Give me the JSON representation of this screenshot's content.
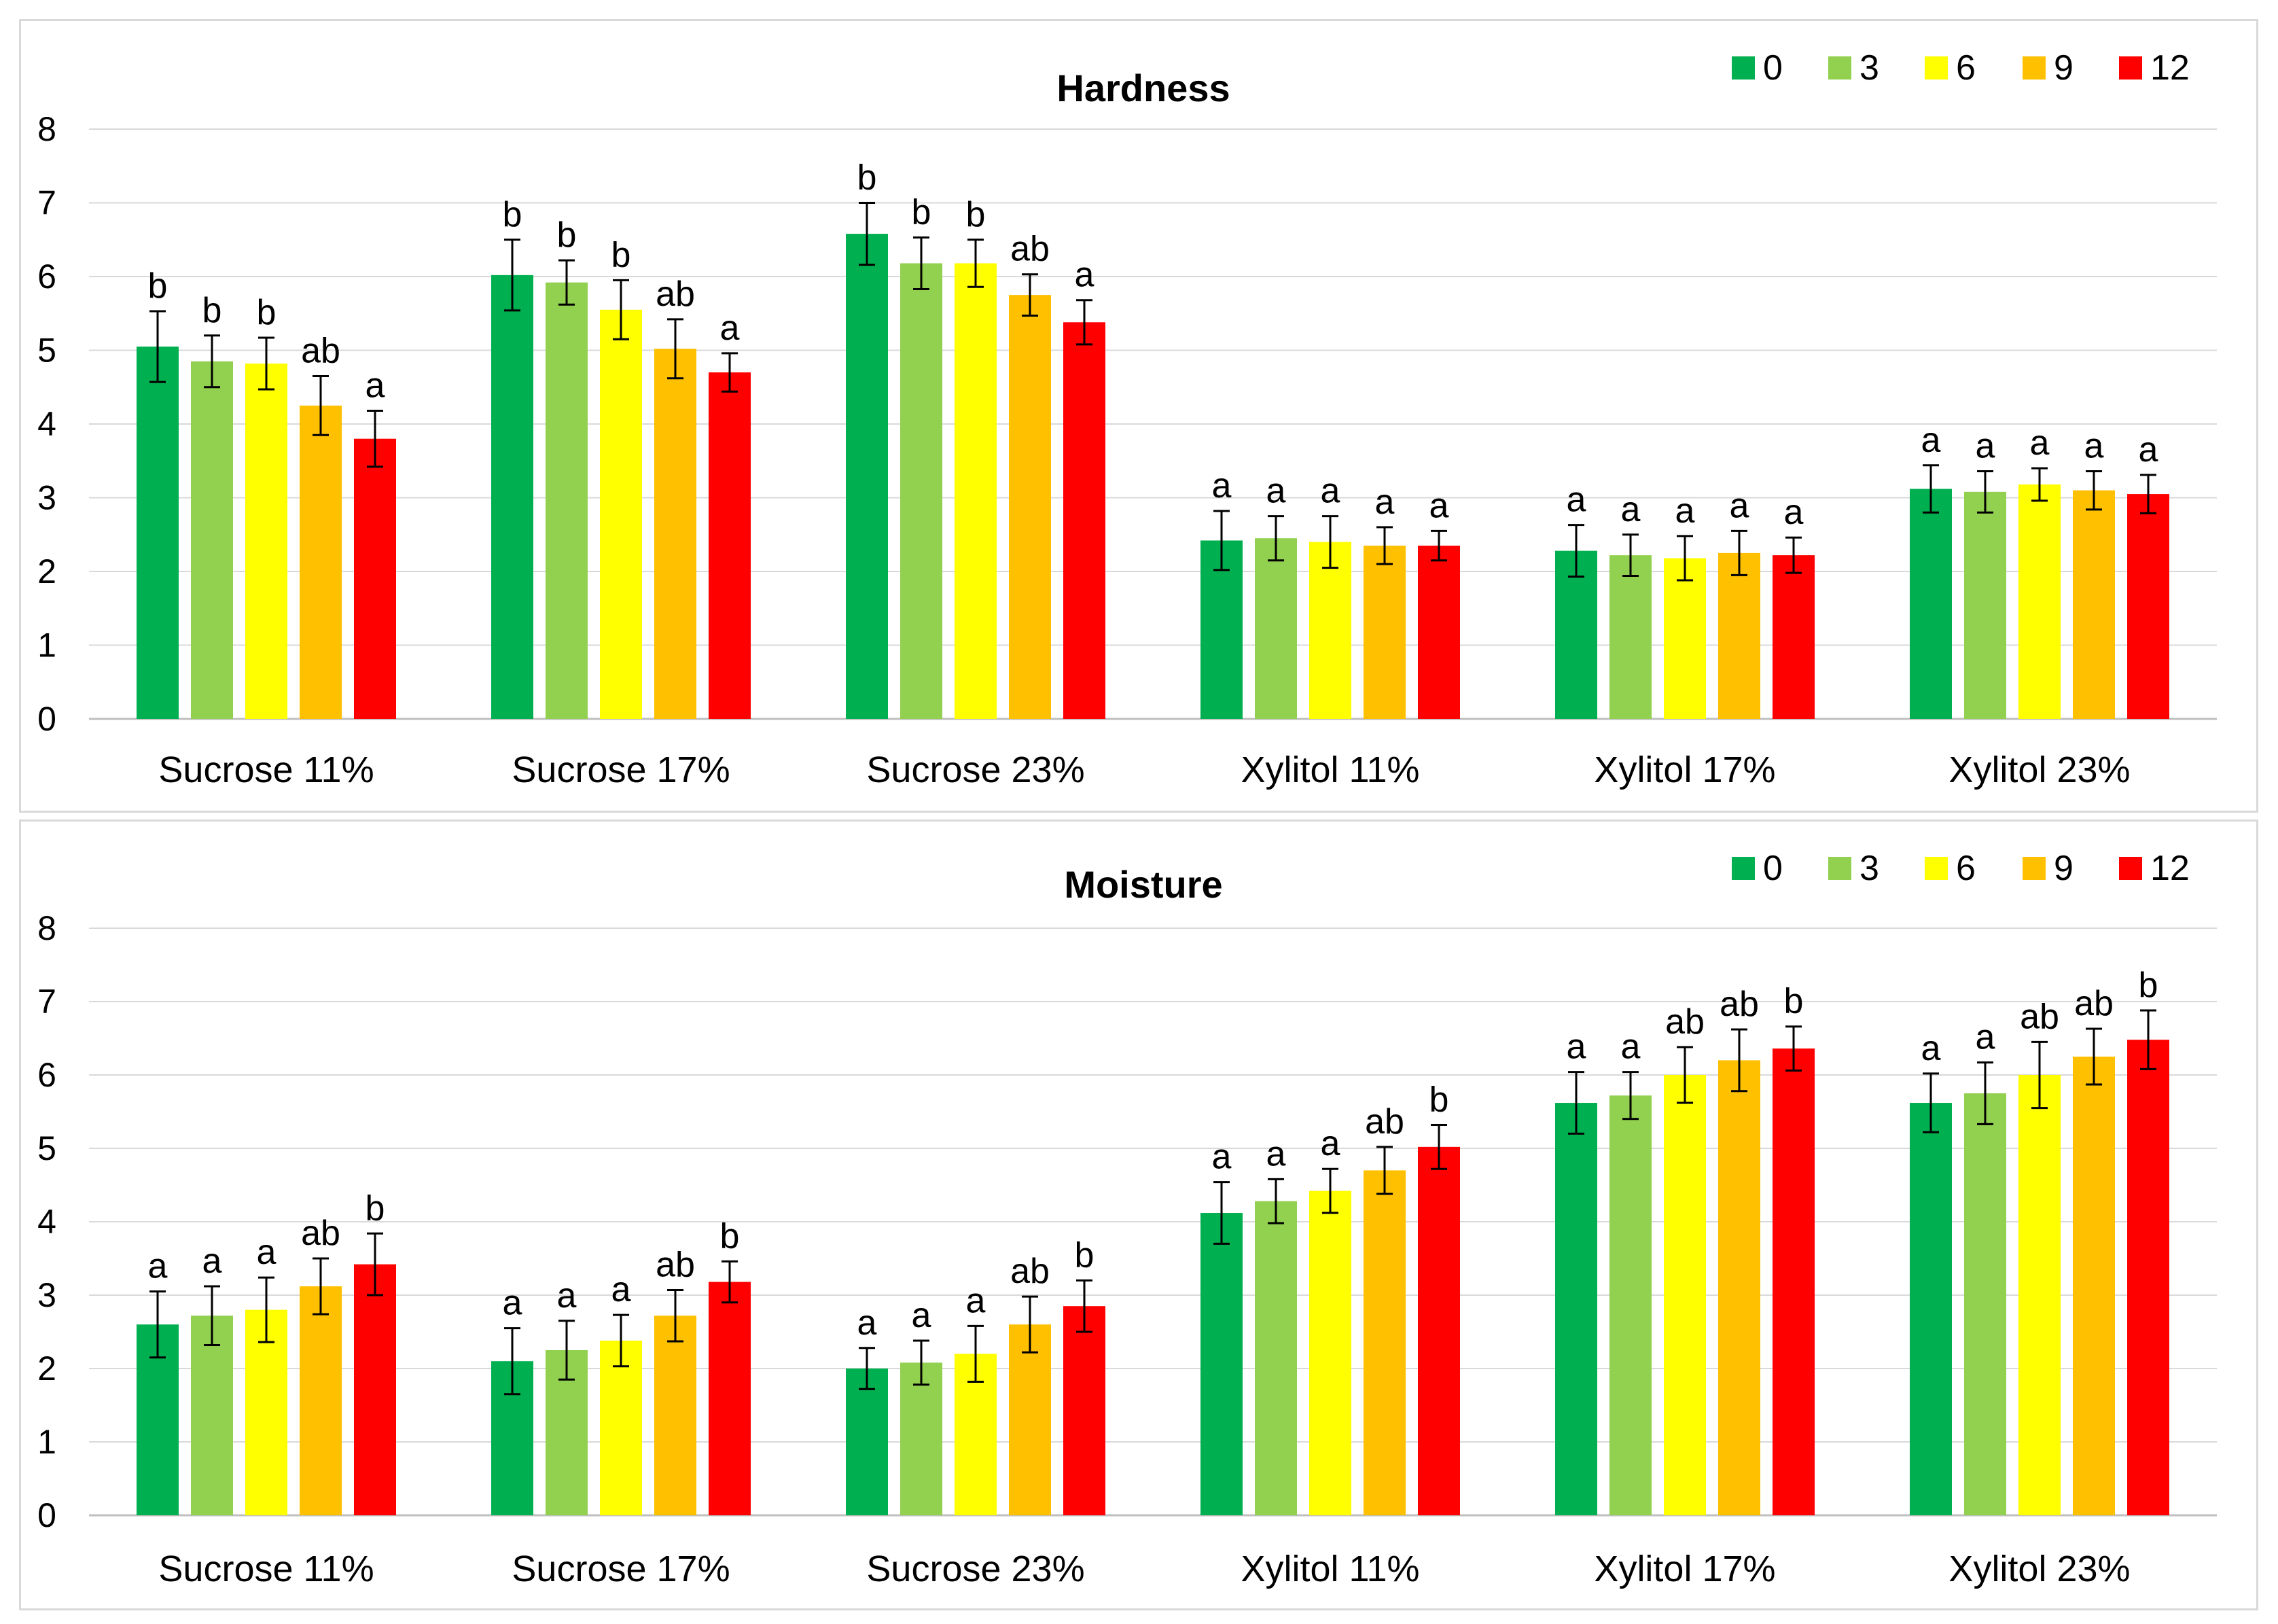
{
  "legend_title": "",
  "colors": [
    "#00B050",
    "#92D050",
    "#FFFF00",
    "#FFC000",
    "#FF0000"
  ],
  "chart_data": [
    {
      "type": "bar",
      "title": "Hardness",
      "xlabel": "",
      "ylabel": "",
      "ylim": [
        0,
        8
      ],
      "yticks": [
        "0",
        "1",
        "2",
        "3",
        "4",
        "5",
        "6",
        "7",
        "8"
      ],
      "categories": [
        "Sucrose 11%",
        "Sucrose 17%",
        "Sucrose 23%",
        "Xylitol 11%",
        "Xylitol 17%",
        "Xylitol 23%"
      ],
      "legend": "top-right",
      "series": [
        {
          "name": "0",
          "values": [
            5.05,
            6.02,
            6.58,
            2.42,
            2.28,
            3.12
          ],
          "errors": [
            0.48,
            0.48,
            0.42,
            0.4,
            0.35,
            0.32
          ],
          "labels": [
            "b",
            "b",
            "b",
            "a",
            "a",
            "a"
          ]
        },
        {
          "name": "3",
          "values": [
            4.85,
            5.92,
            6.18,
            2.45,
            2.22,
            3.08
          ],
          "errors": [
            0.35,
            0.3,
            0.35,
            0.3,
            0.28,
            0.28
          ],
          "labels": [
            "b",
            "b",
            "b",
            "a",
            "a",
            "a"
          ]
        },
        {
          "name": "6",
          "values": [
            4.82,
            5.55,
            6.18,
            2.4,
            2.18,
            3.18
          ],
          "errors": [
            0.35,
            0.4,
            0.32,
            0.35,
            0.3,
            0.22
          ],
          "labels": [
            "b",
            "b",
            "b",
            "a",
            "a",
            "a"
          ]
        },
        {
          "name": "9",
          "values": [
            4.25,
            5.02,
            5.75,
            2.35,
            2.25,
            3.1
          ],
          "errors": [
            0.4,
            0.4,
            0.28,
            0.25,
            0.3,
            0.26
          ],
          "labels": [
            "ab",
            "ab",
            "ab",
            "a",
            "a",
            "a"
          ]
        },
        {
          "name": "12",
          "values": [
            3.8,
            4.7,
            5.38,
            2.35,
            2.22,
            3.05
          ],
          "errors": [
            0.38,
            0.26,
            0.3,
            0.2,
            0.24,
            0.26
          ],
          "labels": [
            "a",
            "a",
            "a",
            "a",
            "a",
            "a"
          ]
        }
      ]
    },
    {
      "type": "bar",
      "title": "Moisture",
      "xlabel": "",
      "ylabel": "",
      "ylim": [
        0,
        8
      ],
      "yticks": [
        "0",
        "1",
        "2",
        "3",
        "4",
        "5",
        "6",
        "7",
        "8"
      ],
      "categories": [
        "Sucrose 11%",
        "Sucrose 17%",
        "Sucrose 23%",
        "Xylitol 11%",
        "Xylitol 17%",
        "Xylitol 23%"
      ],
      "legend": "top-right",
      "series": [
        {
          "name": "0",
          "values": [
            2.6,
            2.1,
            2.0,
            4.12,
            5.62,
            5.62
          ],
          "errors": [
            0.45,
            0.45,
            0.28,
            0.42,
            0.42,
            0.4
          ],
          "labels": [
            "a",
            "a",
            "a",
            "a",
            "a",
            "a"
          ]
        },
        {
          "name": "3",
          "values": [
            2.72,
            2.25,
            2.08,
            4.28,
            5.72,
            5.75
          ],
          "errors": [
            0.4,
            0.4,
            0.3,
            0.3,
            0.32,
            0.42
          ],
          "labels": [
            "a",
            "a",
            "a",
            "a",
            "a",
            "a"
          ]
        },
        {
          "name": "6",
          "values": [
            2.8,
            2.38,
            2.2,
            4.42,
            6.0,
            6.0
          ],
          "errors": [
            0.44,
            0.35,
            0.38,
            0.3,
            0.38,
            0.45
          ],
          "labels": [
            "a",
            "a",
            "a",
            "a",
            "ab",
            "ab"
          ]
        },
        {
          "name": "9",
          "values": [
            3.12,
            2.72,
            2.6,
            4.7,
            6.2,
            6.25
          ],
          "errors": [
            0.38,
            0.35,
            0.38,
            0.32,
            0.42,
            0.38
          ],
          "labels": [
            "ab",
            "ab",
            "ab",
            "ab",
            "ab",
            "ab"
          ]
        },
        {
          "name": "12",
          "values": [
            3.42,
            3.18,
            2.85,
            5.02,
            6.36,
            6.48
          ],
          "errors": [
            0.42,
            0.28,
            0.35,
            0.3,
            0.3,
            0.4
          ],
          "labels": [
            "b",
            "b",
            "b",
            "b",
            "b",
            "b"
          ]
        }
      ]
    }
  ]
}
